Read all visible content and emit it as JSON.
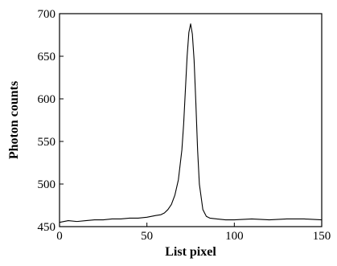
{
  "chart_data": {
    "type": "line",
    "title": "",
    "xlabel": "List pixel",
    "ylabel": "Photon counts",
    "xlim": [
      0,
      150
    ],
    "ylim": [
      450,
      700
    ],
    "x_ticks": [
      0,
      50,
      100,
      150
    ],
    "y_ticks": [
      450,
      500,
      550,
      600,
      650,
      700
    ],
    "x_tick_labels": [
      "0",
      "50",
      "100",
      "150"
    ],
    "y_tick_labels": [
      "450",
      "500",
      "550",
      "600",
      "650",
      "700"
    ],
    "grid": false,
    "legend": "none",
    "line_color": "#000000",
    "series": [
      {
        "x": [
          0,
          5,
          10,
          15,
          20,
          25,
          30,
          35,
          40,
          45,
          50,
          55,
          58,
          60,
          62,
          64,
          66,
          68,
          70,
          71,
          72,
          73,
          74,
          75,
          76,
          77,
          78,
          79,
          80,
          82,
          84,
          86,
          90,
          95,
          100,
          110,
          120,
          130,
          140,
          150
        ],
        "y": [
          455,
          457,
          456,
          457,
          458,
          458,
          459,
          459,
          460,
          460,
          461,
          463,
          464,
          466,
          470,
          476,
          487,
          505,
          540,
          570,
          610,
          650,
          678,
          688,
          676,
          645,
          595,
          540,
          500,
          470,
          462,
          460,
          459,
          458,
          458,
          459,
          458,
          459,
          459,
          458
        ]
      }
    ]
  }
}
